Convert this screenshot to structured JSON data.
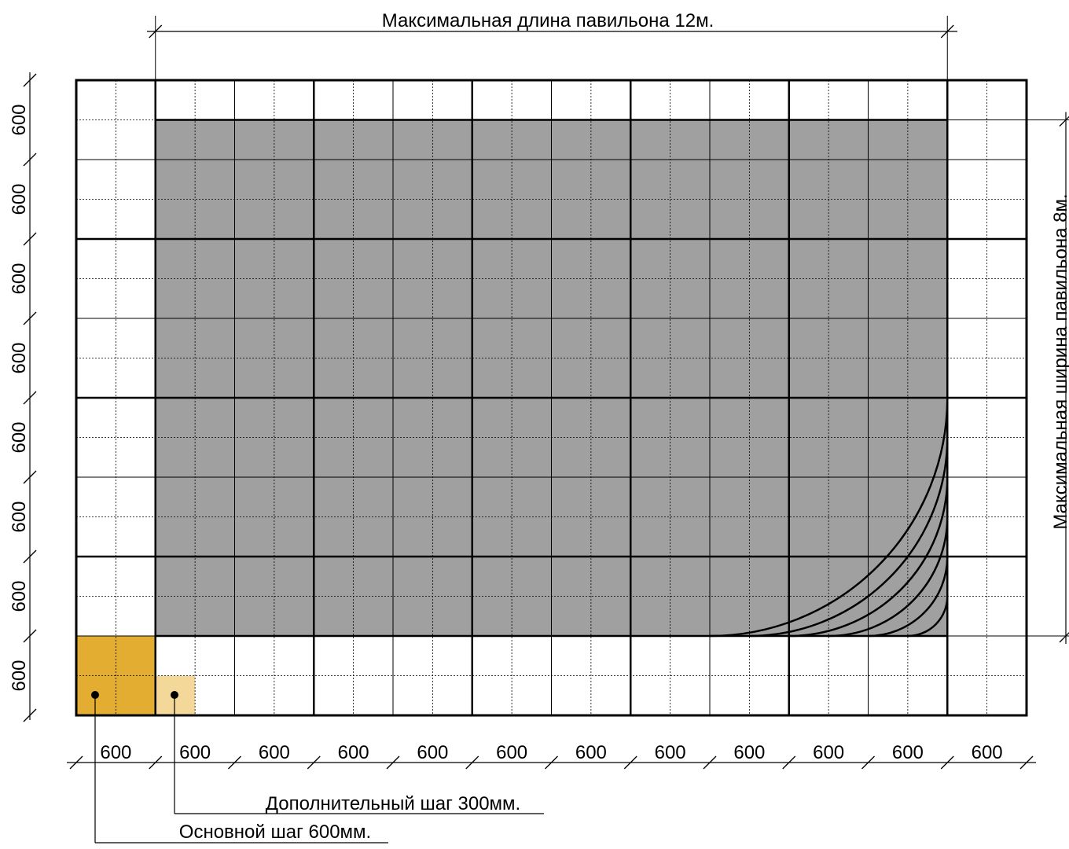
{
  "title_length": "Максимальная длина павильона 12м.",
  "title_width": "Максимальная ширина павильона 8м.",
  "module_label": "600",
  "bottom_labels": [
    "600",
    "600",
    "600",
    "600",
    "600",
    "600",
    "600",
    "600",
    "600",
    "600",
    "600",
    "600"
  ],
  "left_labels": [
    "600",
    "600",
    "600",
    "600",
    "600",
    "600",
    "600",
    "600"
  ],
  "callout_extra": "Дополнительный шаг 300мм.",
  "callout_main": "Основной шаг 600мм.",
  "colors": {
    "pavilion": "#a0a0a0",
    "main_step": "#e2ad31",
    "extra_step": "#f4d89a",
    "line": "#000000"
  }
}
